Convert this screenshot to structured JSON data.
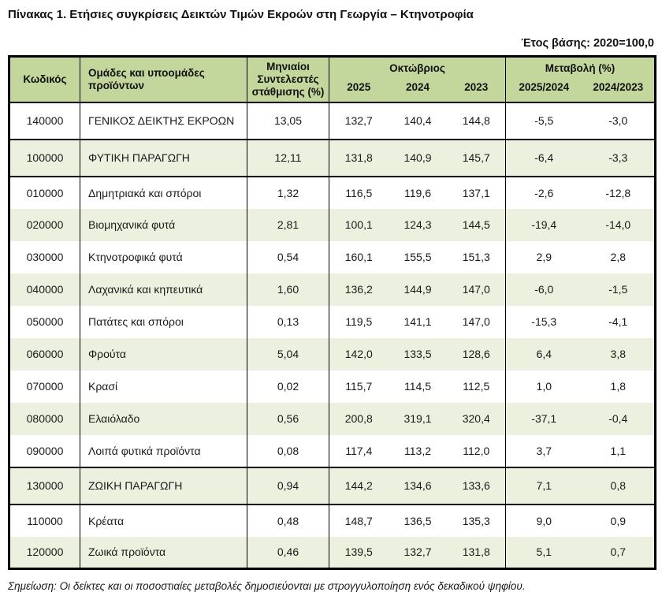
{
  "title": "Πίνακας 1. Ετήσιες συγκρίσεις Δεικτών Τιμών Εκροών στη Γεωργία – Κτηνοτροφία",
  "base_year_label": "Έτος βάσης: 2020=100,0",
  "note": "Σημείωση: Οι δείκτες και οι ποσοστιαίες μεταβολές δημοσιεύονται με στρογγυλοποίηση ενός δεκαδικού ψηφίου.",
  "colors": {
    "header_bg": "#c3d69b",
    "stripe_bg": "#ebf1de",
    "border": "#000000"
  },
  "table": {
    "headers": {
      "code": "Κωδικός",
      "groups": "Ομάδες και υποομάδες προϊόντων",
      "weights": "Μηνιαίοι Συντελεστές στάθμισης (%)",
      "month_group": "Οκτώβριος",
      "year_2025": "2025",
      "year_2024": "2024",
      "year_2023": "2023",
      "change_group": "Μεταβολή (%)",
      "change_2025_2024": "2025/2024",
      "change_2024_2023": "2024/2023"
    },
    "rows": [
      {
        "code": "140000",
        "name": "ΓΕΝΙΚΟΣ ΔΕΙΚΤΗΣ ΕΚΡΟΩΝ",
        "weight": "13,05",
        "y2025": "132,7",
        "y2024": "140,4",
        "y2023": "144,8",
        "chg_2025_2024": "-5,5",
        "chg_2024_2023": "-3,0",
        "main": true,
        "section_break_after": true
      },
      {
        "code": "100000",
        "name": "ΦΥΤΙΚΗ ΠΑΡΑΓΩΓΗ",
        "weight": "12,11",
        "y2025": "131,8",
        "y2024": "140,9",
        "y2023": "145,7",
        "chg_2025_2024": "-6,4",
        "chg_2024_2023": "-3,3",
        "main": true,
        "section_break_after": true
      },
      {
        "code": "010000",
        "name": "Δημητριακά και σπόροι",
        "weight": "1,32",
        "y2025": "116,5",
        "y2024": "119,6",
        "y2023": "137,1",
        "chg_2025_2024": "-2,6",
        "chg_2024_2023": "-12,8",
        "main": false,
        "section_break_after": false
      },
      {
        "code": "020000",
        "name": "Βιομηχανικά φυτά",
        "weight": "2,81",
        "y2025": "100,1",
        "y2024": "124,3",
        "y2023": "144,5",
        "chg_2025_2024": "-19,4",
        "chg_2024_2023": "-14,0",
        "main": false,
        "section_break_after": false
      },
      {
        "code": "030000",
        "name": "Κτηνοτροφικά φυτά",
        "weight": "0,54",
        "y2025": "160,1",
        "y2024": "155,5",
        "y2023": "151,3",
        "chg_2025_2024": "2,9",
        "chg_2024_2023": "2,8",
        "main": false,
        "section_break_after": false
      },
      {
        "code": "040000",
        "name": "Λαχανικά και κηπευτικά",
        "weight": "1,60",
        "y2025": "136,2",
        "y2024": "144,9",
        "y2023": "147,0",
        "chg_2025_2024": "-6,0",
        "chg_2024_2023": "-1,5",
        "main": false,
        "section_break_after": false
      },
      {
        "code": "050000",
        "name": "Πατάτες και σπόροι",
        "weight": "0,13",
        "y2025": "119,5",
        "y2024": "141,1",
        "y2023": "147,0",
        "chg_2025_2024": "-15,3",
        "chg_2024_2023": "-4,1",
        "main": false,
        "section_break_after": false
      },
      {
        "code": "060000",
        "name": "Φρούτα",
        "weight": "5,04",
        "y2025": "142,0",
        "y2024": "133,5",
        "y2023": "128,6",
        "chg_2025_2024": "6,4",
        "chg_2024_2023": "3,8",
        "main": false,
        "section_break_after": false
      },
      {
        "code": "070000",
        "name": "Κρασί",
        "weight": "0,02",
        "y2025": "115,7",
        "y2024": "114,5",
        "y2023": "112,5",
        "chg_2025_2024": "1,0",
        "chg_2024_2023": "1,8",
        "main": false,
        "section_break_after": false
      },
      {
        "code": "080000",
        "name": "Ελαιόλαδο",
        "weight": "0,56",
        "y2025": "200,8",
        "y2024": "319,1",
        "y2023": "320,4",
        "chg_2025_2024": "-37,1",
        "chg_2024_2023": "-0,4",
        "main": false,
        "section_break_after": false
      },
      {
        "code": "090000",
        "name": "Λοιπά φυτικά προϊόντα",
        "weight": "0,08",
        "y2025": "117,4",
        "y2024": "113,2",
        "y2023": "112,0",
        "chg_2025_2024": "3,7",
        "chg_2024_2023": "1,1",
        "main": false,
        "section_break_after": true
      },
      {
        "code": "130000",
        "name": "ΖΩΙΚΗ ΠΑΡΑΓΩΓΗ",
        "weight": "0,94",
        "y2025": "144,2",
        "y2024": "134,6",
        "y2023": "133,6",
        "chg_2025_2024": "7,1",
        "chg_2024_2023": "0,8",
        "main": true,
        "section_break_after": true
      },
      {
        "code": "110000",
        "name": "Κρέατα",
        "weight": "0,48",
        "y2025": "148,7",
        "y2024": "136,5",
        "y2023": "135,3",
        "chg_2025_2024": "9,0",
        "chg_2024_2023": "0,9",
        "main": false,
        "section_break_after": false
      },
      {
        "code": "120000",
        "name": "Ζωικά προϊόντα",
        "weight": "0,46",
        "y2025": "139,5",
        "y2024": "132,7",
        "y2023": "131,8",
        "chg_2025_2024": "5,1",
        "chg_2024_2023": "0,7",
        "main": false,
        "section_break_after": false
      }
    ]
  }
}
